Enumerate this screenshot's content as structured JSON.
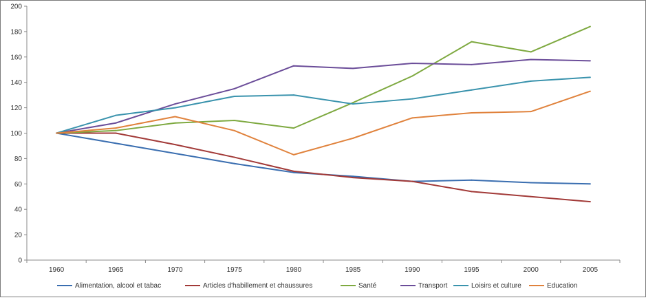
{
  "chart_data": {
    "type": "line",
    "title": "",
    "xlabel": "",
    "ylabel": "",
    "categories": [
      "1960",
      "1965",
      "1970",
      "1975",
      "1980",
      "1985",
      "1990",
      "1995",
      "2000",
      "2005"
    ],
    "ylim": [
      0,
      200
    ],
    "yticks": [
      "0",
      "20",
      "40",
      "60",
      "80",
      "100",
      "120",
      "140",
      "160",
      "180",
      "200"
    ],
    "grid": false,
    "legend": "bottom",
    "series": [
      {
        "name": "Alimentation, alcool et tabac",
        "color": "#3a6eb0",
        "values": [
          100,
          92,
          84,
          76,
          69,
          66,
          62,
          63,
          61,
          60
        ]
      },
      {
        "name": "Articles d'habillement et chaussures",
        "color": "#a23a38",
        "values": [
          100,
          100,
          91,
          81,
          70,
          65,
          62,
          54,
          50,
          46
        ]
      },
      {
        "name": "Santé",
        "color": "#7ea940",
        "values": [
          100,
          102,
          108,
          110,
          104,
          124,
          145,
          172,
          164,
          184
        ]
      },
      {
        "name": "Transport",
        "color": "#6b4d99",
        "values": [
          100,
          108,
          123,
          135,
          153,
          151,
          155,
          154,
          158,
          157
        ]
      },
      {
        "name": "Loisirs et culture",
        "color": "#3a93ad",
        "values": [
          100,
          114,
          120,
          129,
          130,
          123,
          127,
          134,
          141,
          144
        ]
      },
      {
        "name": "Education",
        "color": "#e0823c",
        "values": [
          100,
          104,
          113,
          102,
          83,
          96,
          112,
          116,
          117,
          133
        ]
      }
    ]
  }
}
